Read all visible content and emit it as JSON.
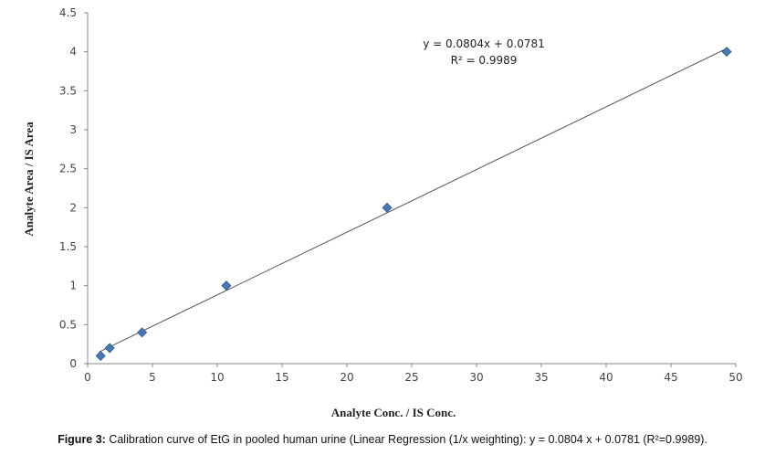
{
  "chart_data": {
    "type": "scatter",
    "xlabel": "Analyte Conc. / IS Conc.",
    "ylabel": "Analyte Area / IS Area",
    "xlim": [
      0,
      50
    ],
    "ylim": [
      0,
      4.5
    ],
    "x_ticks": [
      0,
      5,
      10,
      15,
      20,
      25,
      30,
      35,
      40,
      45,
      50
    ],
    "y_ticks": [
      0,
      0.5,
      1,
      1.5,
      2,
      2.5,
      3,
      3.5,
      4,
      4.5
    ],
    "grid": false,
    "points": [
      {
        "x": 1.0,
        "y": 0.1
      },
      {
        "x": 1.7,
        "y": 0.2
      },
      {
        "x": 4.2,
        "y": 0.4
      },
      {
        "x": 10.7,
        "y": 1.0
      },
      {
        "x": 23.1,
        "y": 2.0
      },
      {
        "x": 49.3,
        "y": 4.0
      }
    ],
    "trendline": {
      "slope": 0.0804,
      "intercept": 0.0781,
      "x_range": [
        0.9,
        49.3
      ]
    },
    "equation_label": "y = 0.0804x + 0.0781",
    "r2_label": "R² = 0.9989",
    "marker_color": "#4a78b5",
    "marker_edge_color": "#2f5a93",
    "trendline_color": "#555555"
  },
  "caption": {
    "label": "Figure 3:",
    "text": " Calibration curve of EtG in pooled human urine (Linear Regression (1/x weighting): y = 0.0804 x + 0.0781 (R²=0.9989)."
  }
}
